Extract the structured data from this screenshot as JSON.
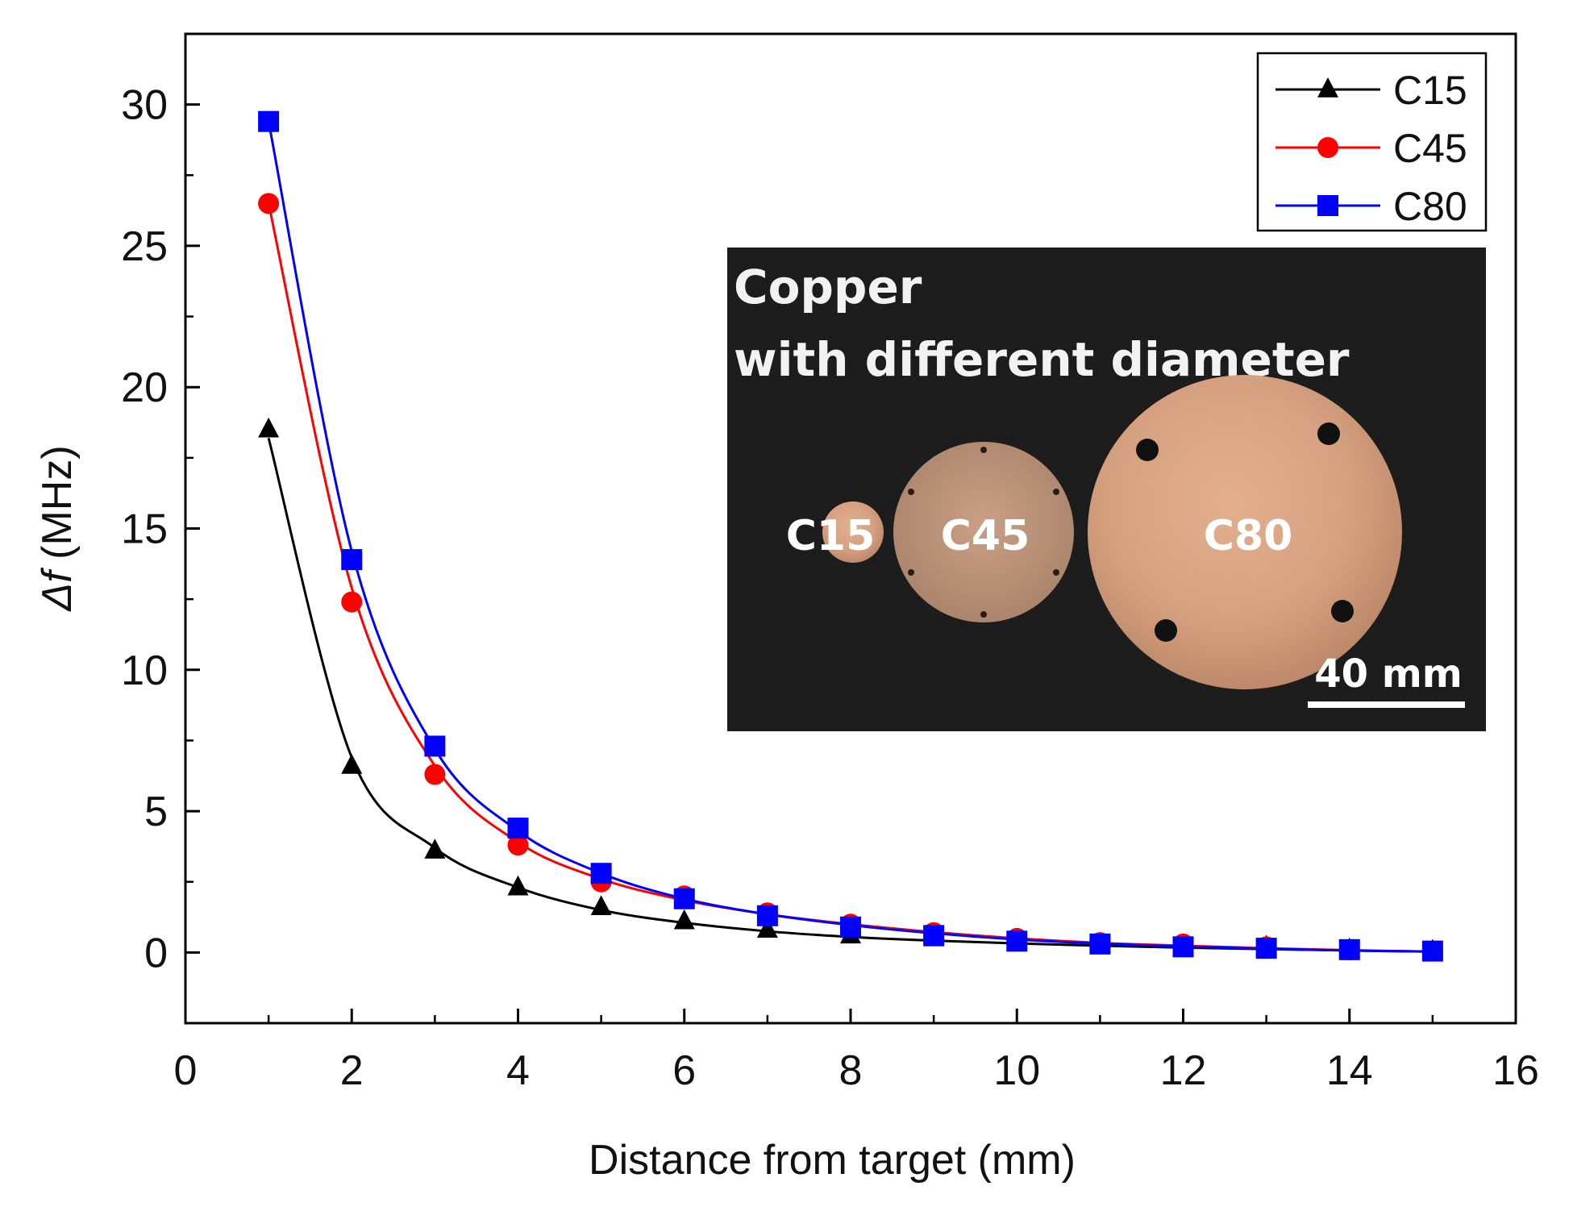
{
  "chart_data": {
    "type": "line",
    "title": "",
    "xlabel": "Distance from target (mm)",
    "ylabel_symbol": "Δf",
    "ylabel_unit": " (MHz)",
    "xlim": [
      0,
      16
    ],
    "ylim": [
      -2.5,
      32.5
    ],
    "xticks": [
      0,
      2,
      4,
      6,
      8,
      10,
      12,
      14,
      16
    ],
    "yticks": [
      0,
      5,
      10,
      15,
      20,
      25,
      30
    ],
    "x": [
      1,
      2,
      3,
      4,
      5,
      6,
      7,
      8,
      9,
      10,
      11,
      12,
      13,
      14,
      15
    ],
    "series": [
      {
        "name": "C15",
        "color": "#000000",
        "marker": "triangle",
        "values": [
          18.5,
          6.6,
          3.6,
          2.3,
          1.6,
          1.1,
          0.8,
          0.6,
          0.5,
          0.4,
          0.3,
          0.25,
          0.2,
          0.1,
          0.05
        ],
        "fit": [
          18.2,
          6.9,
          3.7,
          2.3,
          1.5,
          1.05,
          0.75,
          0.55,
          0.42,
          0.32,
          0.24,
          0.17,
          0.12,
          0.07,
          0.03
        ]
      },
      {
        "name": "C45",
        "color": "#ff0000",
        "marker": "circle",
        "values": [
          26.5,
          12.4,
          6.3,
          3.8,
          2.5,
          2.0,
          1.4,
          1.0,
          0.7,
          0.5,
          0.35,
          0.3,
          0.2,
          0.1,
          0.05
        ],
        "fit": [
          26.5,
          12.9,
          6.6,
          3.9,
          2.6,
          1.85,
          1.35,
          1.0,
          0.72,
          0.5,
          0.34,
          0.24,
          0.15,
          0.08,
          0.03
        ]
      },
      {
        "name": "C80",
        "color": "#0000ff",
        "marker": "square",
        "values": [
          29.4,
          13.9,
          7.3,
          4.4,
          2.8,
          1.9,
          1.3,
          0.9,
          0.6,
          0.4,
          0.3,
          0.2,
          0.15,
          0.1,
          0.05
        ],
        "fit": [
          29.4,
          14.2,
          7.2,
          4.3,
          2.8,
          1.9,
          1.35,
          0.97,
          0.68,
          0.46,
          0.31,
          0.21,
          0.13,
          0.07,
          0.03
        ]
      }
    ],
    "legend_position": "top-right",
    "inset": {
      "title_line1": "Copper",
      "title_line2": "with different diameter",
      "disk_labels": [
        "C15",
        "C45",
        "C80"
      ],
      "scale_bar_label": "40 mm"
    }
  }
}
